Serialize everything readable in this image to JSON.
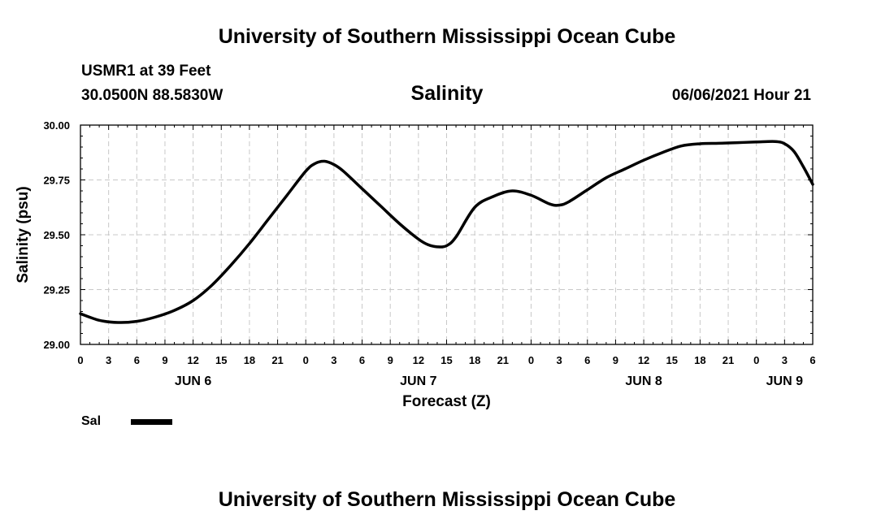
{
  "header": {
    "top_title": "University of Southern Mississippi Ocean Cube",
    "station": "USMR1 at 39 Feet",
    "coordinates": "30.0500N  88.5830W",
    "timestamp": "06/06/2021 Hour 21",
    "bottom_title": "University of Southern Mississippi Ocean Cube"
  },
  "chart_data": {
    "type": "line",
    "title": "Salinity",
    "xlabel": "Forecast (Z)",
    "ylabel": "Salinity (psu)",
    "ylim": [
      29.0,
      30.0
    ],
    "xlim_hours": [
      0,
      78
    ],
    "grid": true,
    "yticks": [
      29.0,
      29.25,
      29.5,
      29.75,
      30.0
    ],
    "ytick_labels": [
      "29.00",
      "29.25",
      "29.50",
      "29.75",
      "30.00"
    ],
    "xticks_hours": [
      0,
      3,
      6,
      9,
      12,
      15,
      18,
      21,
      24,
      27,
      30,
      33,
      36,
      39,
      42,
      45,
      48,
      51,
      54,
      57,
      60,
      63,
      66,
      69,
      72,
      75,
      78
    ],
    "xtick_labels": [
      "0",
      "3",
      "6",
      "9",
      "12",
      "15",
      "18",
      "21",
      "0",
      "3",
      "6",
      "9",
      "12",
      "15",
      "18",
      "21",
      "0",
      "3",
      "6",
      "9",
      "12",
      "15",
      "18",
      "21",
      "0",
      "3",
      "6"
    ],
    "day_labels": [
      {
        "hour": 12,
        "label": "JUN 6"
      },
      {
        "hour": 36,
        "label": "JUN 7"
      },
      {
        "hour": 60,
        "label": "JUN 8"
      },
      {
        "hour": 75,
        "label": "JUN 9"
      }
    ],
    "legend": [
      {
        "name": "Sal",
        "color": "#000000"
      }
    ],
    "series": [
      {
        "name": "Sal",
        "color": "#000000",
        "x": [
          0,
          2,
          4,
          6,
          8,
          10,
          12,
          14,
          16,
          18,
          20,
          22,
          24,
          25,
          26,
          27,
          28,
          30,
          32,
          34,
          36,
          37,
          38,
          39,
          40,
          42,
          44,
          46,
          48,
          50,
          51,
          52,
          54,
          56,
          58,
          60,
          62,
          64,
          66,
          68,
          70,
          72,
          74,
          75,
          76,
          77,
          78
        ],
        "y": [
          29.14,
          29.11,
          29.1,
          29.105,
          29.125,
          29.155,
          29.2,
          29.27,
          29.36,
          29.46,
          29.57,
          29.68,
          29.79,
          29.825,
          29.835,
          29.82,
          29.79,
          29.71,
          29.63,
          29.55,
          29.48,
          29.455,
          29.445,
          29.45,
          29.49,
          29.625,
          29.675,
          29.7,
          29.68,
          29.64,
          29.635,
          29.65,
          29.705,
          29.76,
          29.8,
          29.84,
          29.875,
          29.905,
          29.915,
          29.917,
          29.92,
          29.923,
          29.925,
          29.915,
          29.88,
          29.81,
          29.73
        ]
      }
    ]
  }
}
